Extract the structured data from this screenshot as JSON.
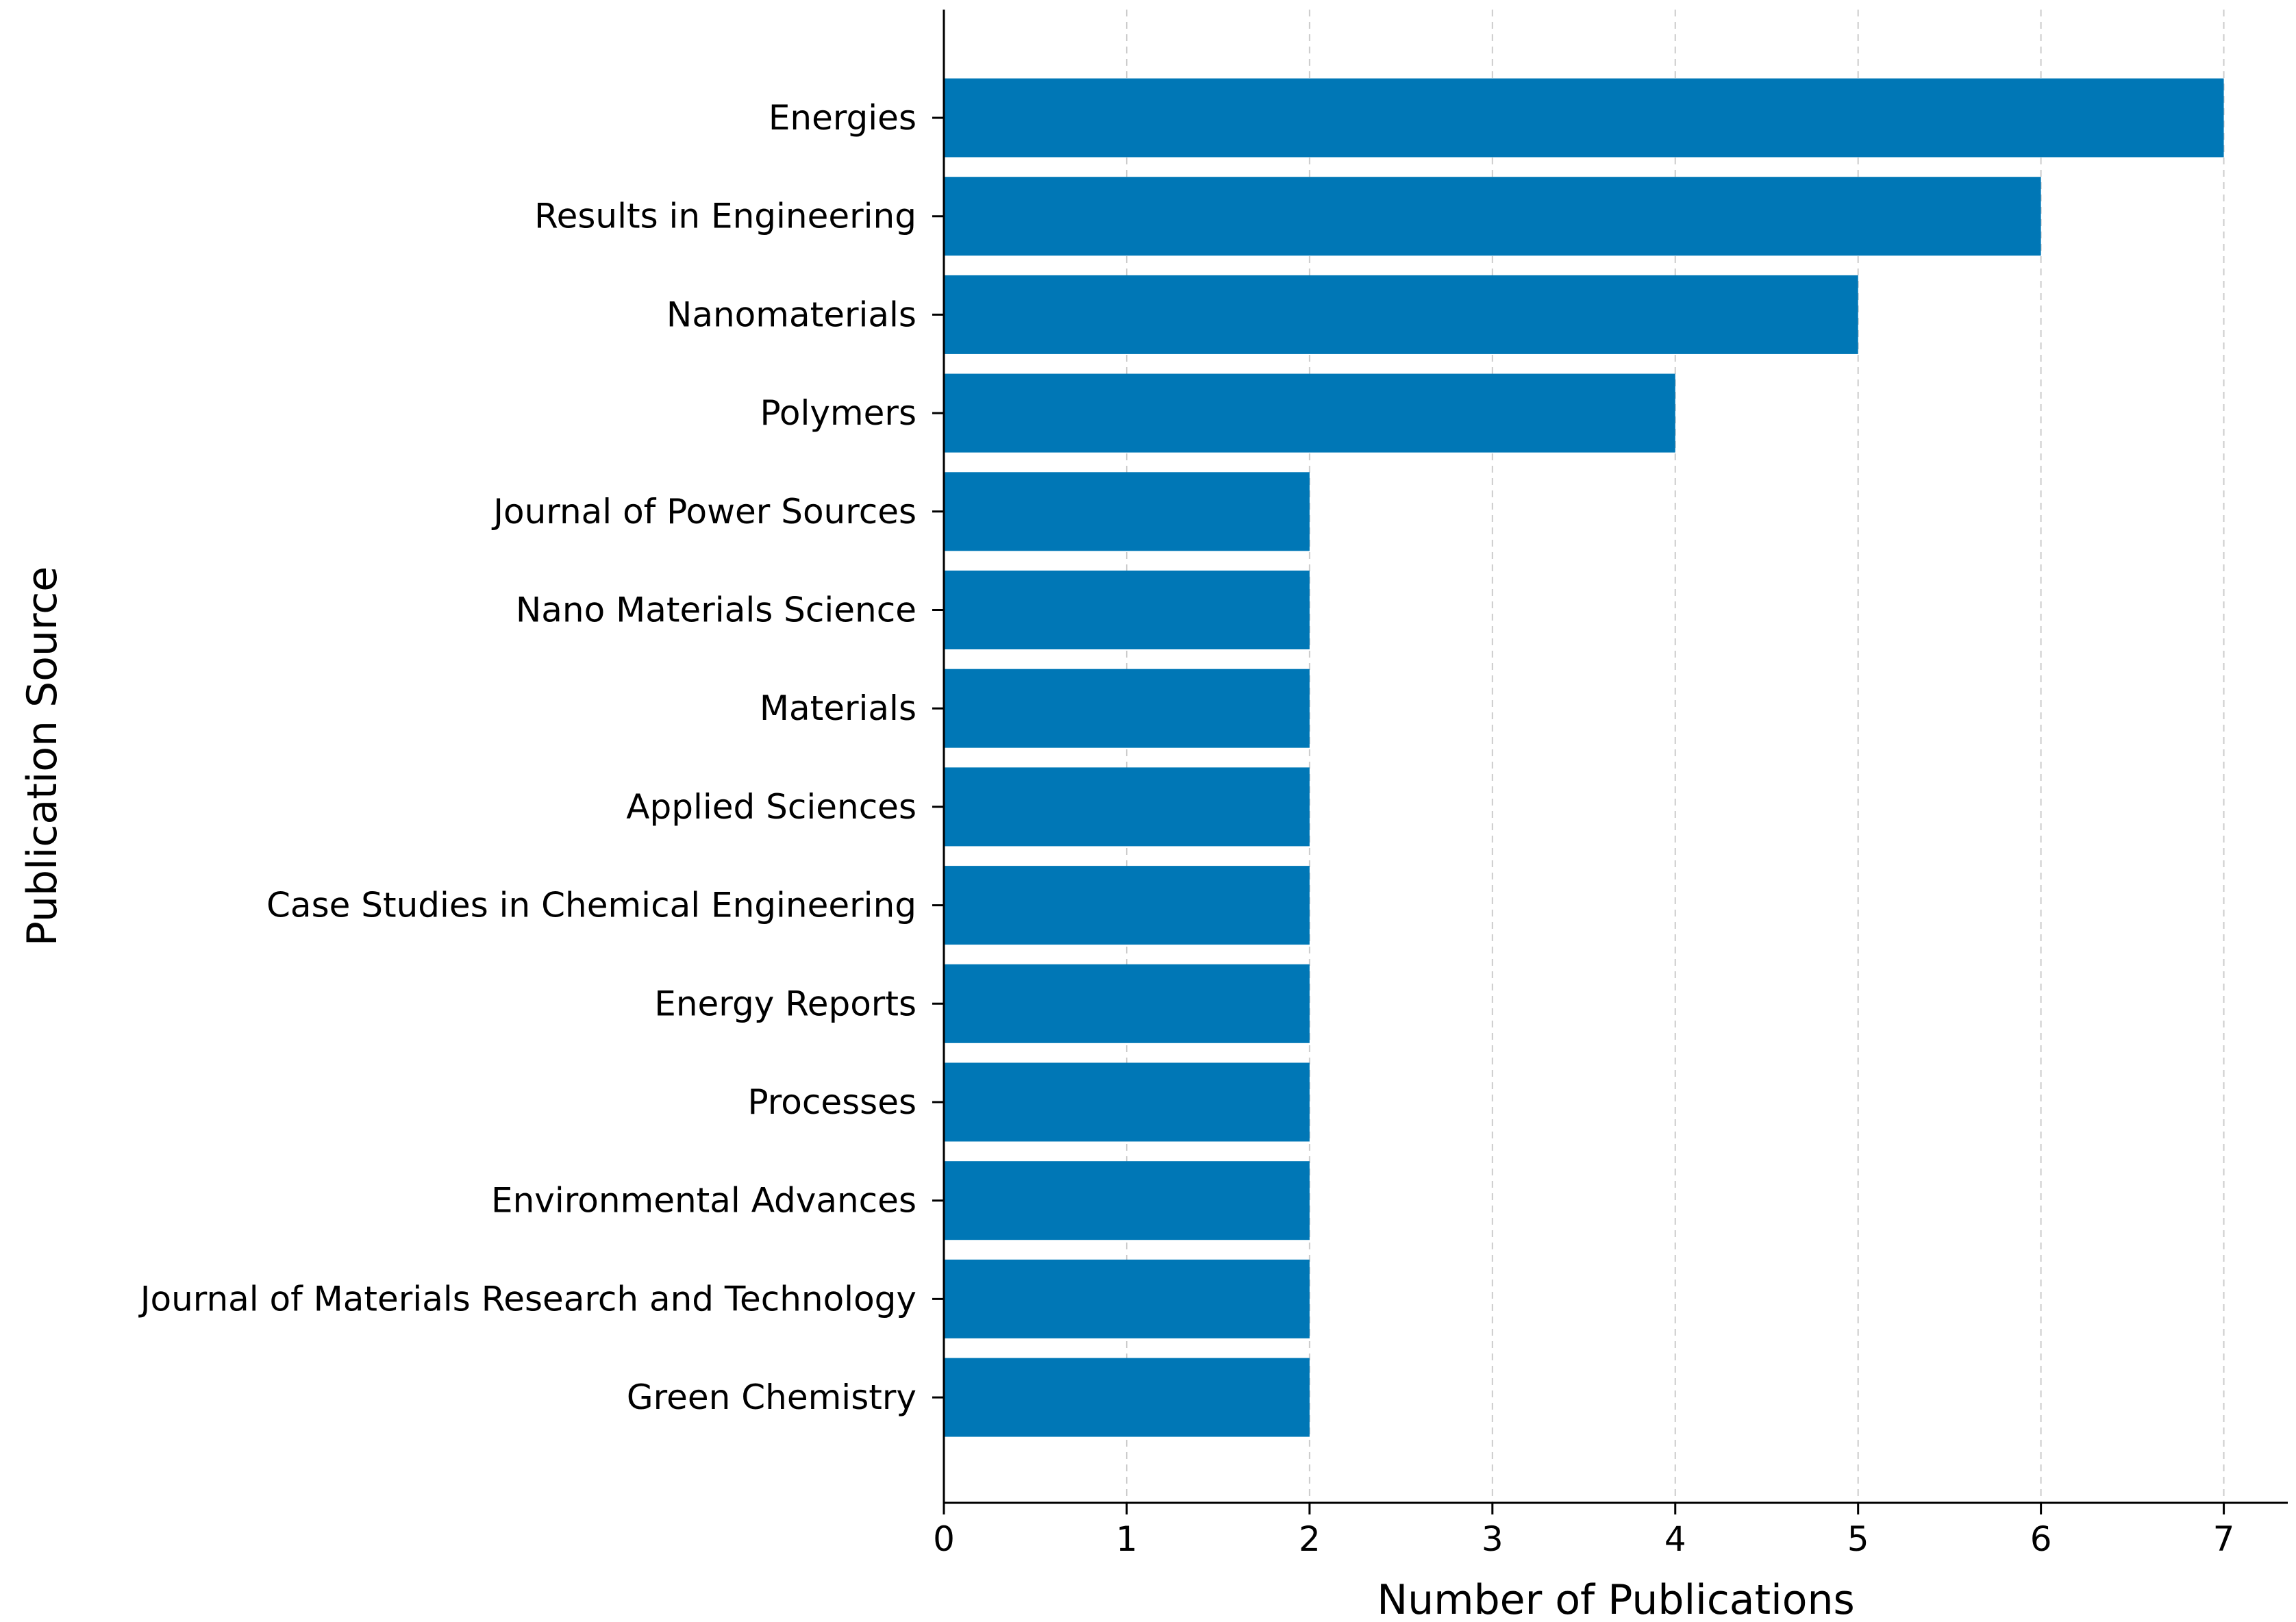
{
  "chart_data": {
    "type": "bar",
    "orientation": "horizontal",
    "categories": [
      "Energies",
      "Results in Engineering",
      "Nanomaterials",
      "Polymers",
      "Journal of Power Sources",
      "Nano Materials Science",
      "Materials",
      "Applied Sciences",
      "Case Studies in Chemical Engineering",
      "Energy Reports",
      "Processes",
      "Environmental Advances",
      "Journal of Materials Research and Technology",
      "Green Chemistry"
    ],
    "values": [
      7,
      6,
      5,
      4,
      2,
      2,
      2,
      2,
      2,
      2,
      2,
      2,
      2,
      2
    ],
    "xlabel": "Number of Publications",
    "ylabel": "Publication Source",
    "xlim": [
      0,
      7.35
    ],
    "xticks": [
      0,
      1,
      2,
      3,
      4,
      5,
      6,
      7
    ],
    "grid": "vertical dashed",
    "bar_color": "#0077b6"
  }
}
